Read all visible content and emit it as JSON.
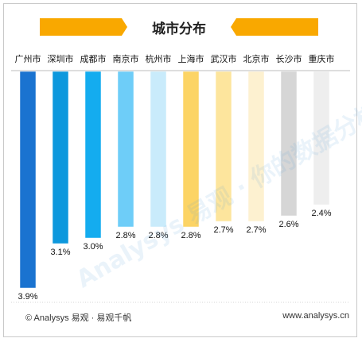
{
  "chart_data": {
    "type": "bar",
    "title": "城市分布",
    "categories": [
      "广州市",
      "深圳市",
      "成都市",
      "南京市",
      "杭州市",
      "上海市",
      "武汉市",
      "北京市",
      "长沙市",
      "重庆市"
    ],
    "values": [
      3.9,
      3.1,
      3.0,
      2.8,
      2.8,
      2.8,
      2.7,
      2.7,
      2.6,
      2.4
    ],
    "value_labels": [
      "3.9%",
      "3.1%",
      "3.0%",
      "2.8%",
      "2.8%",
      "2.8%",
      "2.7%",
      "2.7%",
      "2.6%",
      "2.4%"
    ],
    "colors": [
      "#1a73d0",
      "#0d98dd",
      "#14acef",
      "#6ecdf8",
      "#a9dffa",
      "#c9ebfb",
      "#fcd465",
      "#fde59d",
      "#fdf1d0",
      "#d6d6d6",
      "#eeeeee"
    ],
    "axis": "x-top",
    "xlabel": "",
    "ylabel": "",
    "ylim": [
      0,
      3.9
    ],
    "grid": false,
    "legend": "none"
  },
  "banner_color": "#f9a800",
  "footer": {
    "source": "© Analysys 易观 · 易观千帆",
    "website": "www.analysys.cn"
  },
  "watermark": "Analysys 易观 · 你的数据分析"
}
